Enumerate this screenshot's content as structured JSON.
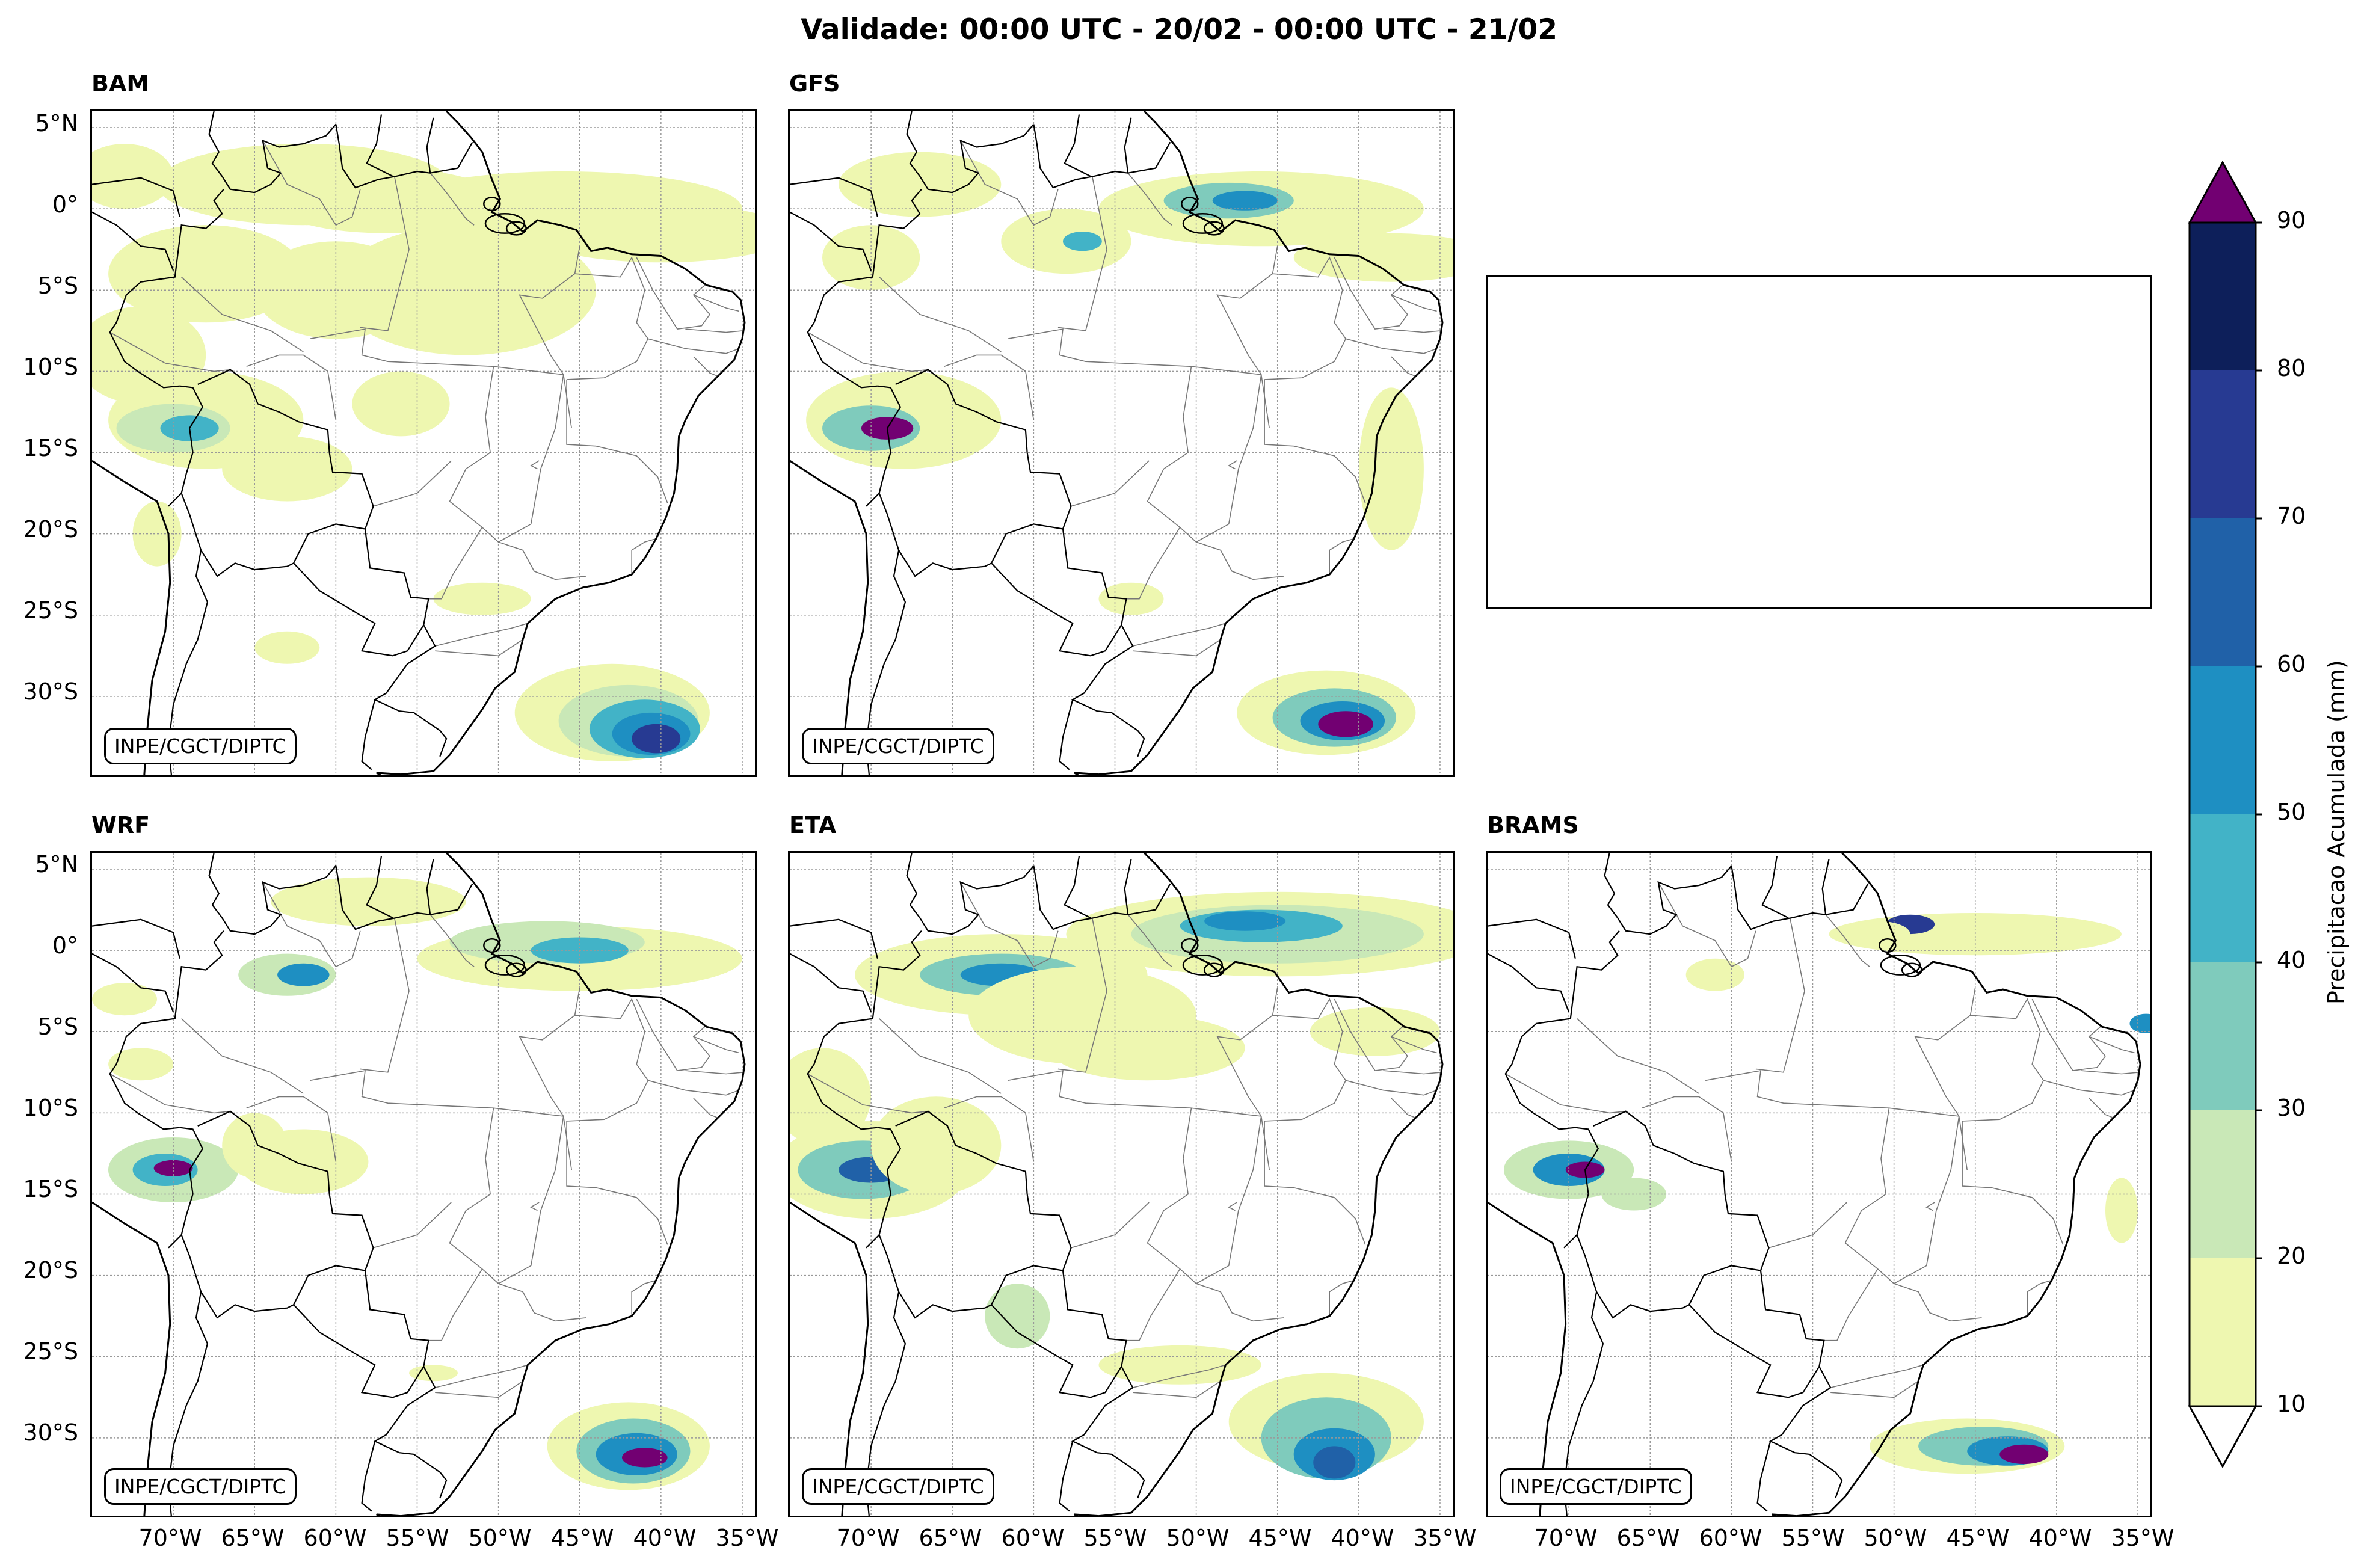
{
  "figure": {
    "suptitle": "Validade: 00:00 UTC - 20/02 - 00:00 UTC - 21/02",
    "credit": "INPE/CGCT/DIPTC",
    "lat_labels": [
      "5°N",
      "0°",
      "5°S",
      "10°S",
      "15°S",
      "20°S",
      "25°S",
      "30°S"
    ],
    "lon_labels": [
      "70°W",
      "65°W",
      "60°W",
      "55°W",
      "50°W",
      "45°W",
      "40°W",
      "35°W"
    ]
  },
  "panels": [
    {
      "title": "BAM",
      "empty": false
    },
    {
      "title": "GFS",
      "empty": false
    },
    {
      "title": "",
      "empty": true
    },
    {
      "title": "WRF",
      "empty": false
    },
    {
      "title": "ETA",
      "empty": false
    },
    {
      "title": "BRAMS",
      "empty": false
    }
  ],
  "colorbar": {
    "label": "Precipitacao Acumulada (mm)",
    "ticks": [
      "10",
      "20",
      "30",
      "40",
      "50",
      "60",
      "70",
      "80",
      "90"
    ],
    "colors": [
      "#eef7b0",
      "#c9e8b7",
      "#7fcbbc",
      "#42b3c7",
      "#1e8fc2",
      "#2061a8",
      "#273a92",
      "#0d1f5a"
    ],
    "over_color": "#720072",
    "under_color": "#ffffff"
  },
  "map_colors": {
    "coast": "#000000",
    "border": "#777777",
    "grid": "#999999"
  }
}
